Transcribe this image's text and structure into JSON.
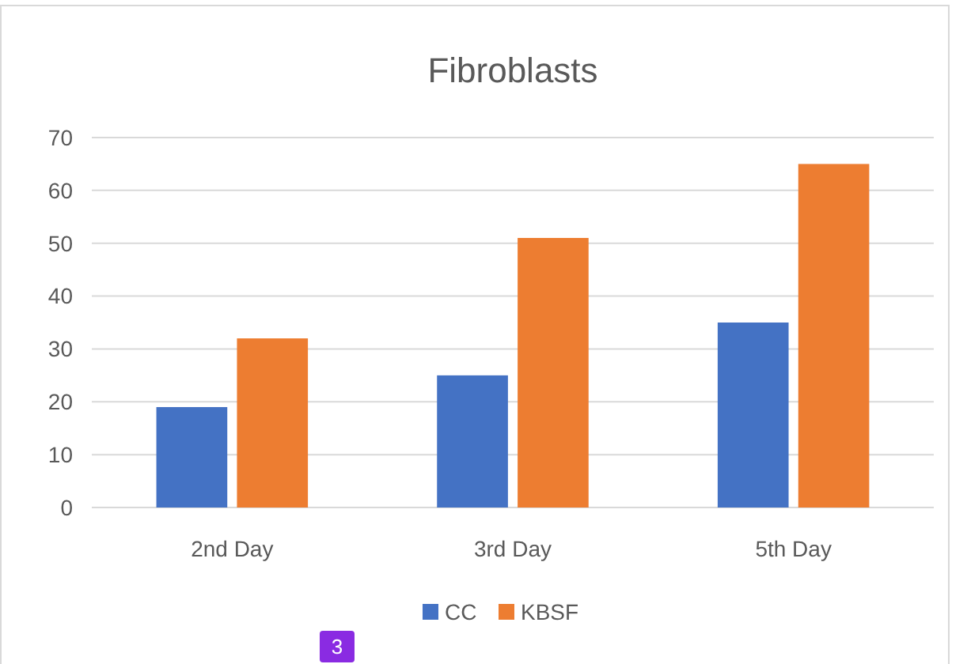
{
  "chart_data": {
    "type": "bar",
    "title": "Fibroblasts",
    "categories": [
      "2nd Day",
      "3rd Day",
      "5th Day"
    ],
    "series": [
      {
        "name": "CC",
        "color": "#4472c4",
        "values": [
          19,
          25,
          35
        ]
      },
      {
        "name": "KBSF",
        "color": "#ed7d31",
        "values": [
          32,
          51,
          65
        ]
      }
    ],
    "ylim": [
      0,
      70
    ],
    "yticks": [
      0,
      10,
      20,
      30,
      40,
      50,
      60,
      70
    ],
    "grid": "y",
    "legend": "bottom",
    "annotations": [
      "3"
    ]
  }
}
